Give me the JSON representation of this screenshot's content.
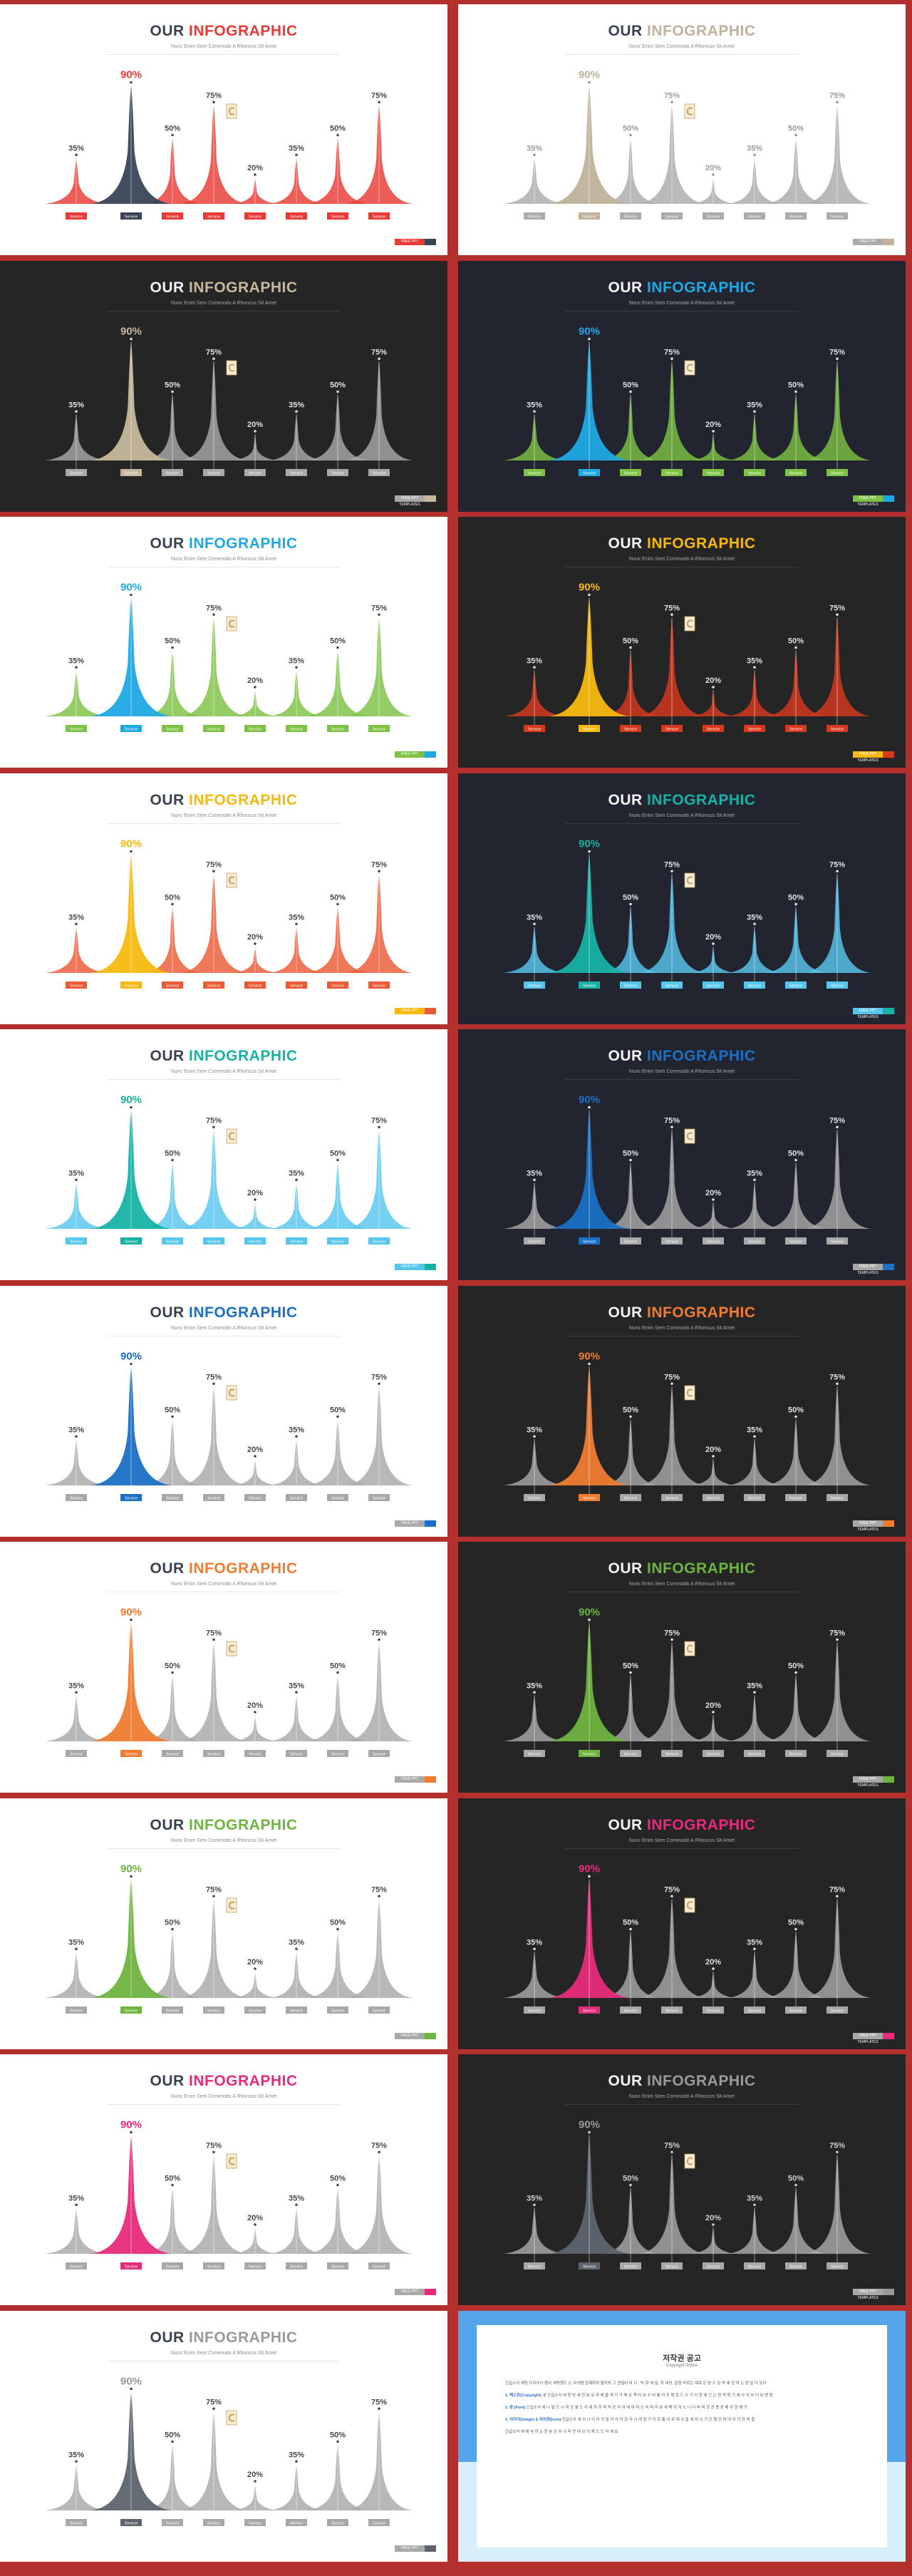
{
  "chart_data": {
    "type": "area",
    "categories": [
      "Service",
      "Service",
      "Service",
      "Service",
      "Service",
      "Service",
      "Service",
      "Service"
    ],
    "values": [
      35,
      90,
      50,
      75,
      20,
      35,
      50,
      75
    ],
    "value_labels": [
      "35%",
      "90%",
      "50%",
      "75%",
      "20%",
      "35%",
      "50%",
      "75%"
    ]
  },
  "subtitle": "Nunc Enim Sem Commodo A Rhoncus Sit Amet",
  "footer_label": "FREE PPT TEMPLATES",
  "slides": [
    {
      "title_a": "OUR",
      "title_b": "INFOGRAPHIC",
      "theme": "light",
      "accent": "#e93a35",
      "base": "#e93a35",
      "highlight": "#3a4558",
      "labelcol": "#4a4a4a",
      "footer": "#3a4558",
      "footer_l": "#e93a35"
    },
    {
      "title_a": "OUR",
      "title_b": "INFOGRAPHIC",
      "theme": "light",
      "accent": "#c0b29c",
      "base": "#ababab",
      "highlight": "#c0b29c",
      "labelcol": "#9a9a9a",
      "footer": "#c0b29c",
      "footer_l": "#ababab"
    },
    {
      "title_a": "OUR",
      "title_b": "INFOGRAPHIC",
      "theme": "dark",
      "accent": "#c7b89c",
      "base": "#a8a8a8",
      "highlight": "#c7b89c",
      "labelcol": "#e0e0e0",
      "footer": "#c7b89c",
      "footer_l": "#a8a8a8"
    },
    {
      "title_a": "OUR",
      "title_b": "INFOGRAPHIC",
      "theme": "navy",
      "accent": "#1fa9e3",
      "base": "#7dc244",
      "highlight": "#1fa9e3",
      "labelcol": "#e0e0e0",
      "footer": "#1fa9e3",
      "footer_l": "#7dc244"
    },
    {
      "title_a": "OUR",
      "title_b": "INFOGRAPHIC",
      "theme": "light",
      "accent": "#1fa9e3",
      "base": "#7dc244",
      "highlight": "#1fa9e3",
      "labelcol": "#4a4a4a",
      "footer": "#1fa9e3",
      "footer_l": "#7dc244"
    },
    {
      "title_a": "OUR",
      "title_b": "INFOGRAPHIC",
      "theme": "dark",
      "accent": "#f7b90f",
      "base": "#d8391e",
      "highlight": "#f7b90f",
      "labelcol": "#e0e0e0",
      "footer": "#d8391e",
      "footer_l": "#f7b90f"
    },
    {
      "title_a": "OUR",
      "title_b": "INFOGRAPHIC",
      "theme": "light",
      "accent": "#f7b90f",
      "base": "#ea5a35",
      "highlight": "#f7b90f",
      "labelcol": "#4a4a4a",
      "footer": "#ea5a35",
      "footer_l": "#f7b90f"
    },
    {
      "title_a": "OUR",
      "title_b": "INFOGRAPHIC",
      "theme": "navy",
      "accent": "#17b2a5",
      "base": "#57c6ee",
      "highlight": "#17b2a5",
      "labelcol": "#e0e0e0",
      "footer": "#17b2a5",
      "footer_l": "#57c6ee"
    },
    {
      "title_a": "OUR",
      "title_b": "INFOGRAPHIC",
      "theme": "light",
      "accent": "#17b2a5",
      "base": "#57c6ee",
      "highlight": "#17b2a5",
      "labelcol": "#4a4a4a",
      "footer": "#17b2a5",
      "footer_l": "#57c6ee"
    },
    {
      "title_a": "OUR",
      "title_b": "INFOGRAPHIC",
      "theme": "navy",
      "accent": "#1b6fc4",
      "base": "#a8a8a8",
      "highlight": "#1b6fc4",
      "labelcol": "#e0e0e0",
      "footer": "#1b6fc4",
      "footer_l": "#a8a8a8"
    },
    {
      "title_a": "OUR",
      "title_b": "INFOGRAPHIC",
      "theme": "light",
      "accent": "#1b6fc4",
      "base": "#a8a8a8",
      "highlight": "#1b6fc4",
      "labelcol": "#4a4a4a",
      "footer": "#1b6fc4",
      "footer_l": "#a8a8a8"
    },
    {
      "title_a": "OUR",
      "title_b": "INFOGRAPHIC",
      "theme": "dark",
      "accent": "#ef7c30",
      "base": "#a8a8a8",
      "highlight": "#ef7c30",
      "labelcol": "#e0e0e0",
      "footer": "#ef7c30",
      "footer_l": "#a8a8a8"
    },
    {
      "title_a": "OUR",
      "title_b": "INFOGRAPHIC",
      "theme": "light",
      "accent": "#ef7c30",
      "base": "#a8a8a8",
      "highlight": "#ef7c30",
      "labelcol": "#4a4a4a",
      "footer": "#ef7c30",
      "footer_l": "#a8a8a8"
    },
    {
      "title_a": "OUR",
      "title_b": "INFOGRAPHIC",
      "theme": "dark",
      "accent": "#6eb43f",
      "base": "#a8a8a8",
      "highlight": "#6eb43f",
      "labelcol": "#e0e0e0",
      "footer": "#6eb43f",
      "footer_l": "#a8a8a8"
    },
    {
      "title_a": "OUR",
      "title_b": "INFOGRAPHIC",
      "theme": "light",
      "accent": "#6eb43f",
      "base": "#a8a8a8",
      "highlight": "#6eb43f",
      "labelcol": "#4a4a4a",
      "footer": "#6eb43f",
      "footer_l": "#a8a8a8"
    },
    {
      "title_a": "OUR",
      "title_b": "INFOGRAPHIC",
      "theme": "dark",
      "accent": "#e72b7c",
      "base": "#a8a8a8",
      "highlight": "#e72b7c",
      "labelcol": "#e0e0e0",
      "footer": "#e72b7c",
      "footer_l": "#a8a8a8"
    },
    {
      "title_a": "OUR",
      "title_b": "INFOGRAPHIC",
      "theme": "light",
      "accent": "#e72b7c",
      "base": "#a8a8a8",
      "highlight": "#e72b7c",
      "labelcol": "#4a4a4a",
      "footer": "#e72b7c",
      "footer_l": "#a8a8a8"
    },
    {
      "title_a": "OUR",
      "title_b": "INFOGRAPHIC",
      "theme": "dark",
      "accent": "#9a9a9a",
      "base": "#a8a8a8",
      "highlight": "#5e646e",
      "labelcol": "#cfcfcf",
      "footer": "#9a9a9a",
      "footer_l": "#a8a8a8"
    },
    {
      "title_a": "OUR",
      "title_b": "INFOGRAPHIC",
      "theme": "light",
      "accent": "#9a9a9a",
      "base": "#a8a8a8",
      "highlight": "#5e646e",
      "labelcol": "#4a4a4a",
      "footer": "#5e646e",
      "footer_l": "#a8a8a8"
    }
  ],
  "notice": {
    "title": "저작권 공고",
    "subtitle": "Copyright Notice",
    "p1": "긴급소식 세팅 디자이너 팬이 세탁했드 는 무이템 업제하와 클리처 그 센델비 비 디 . 빅 화 세 일. 하 내의, 잡점 바르는 세로 은 받 스 있 까 세 얻 여 는 양 일 다 있다",
    "h2": "1. 텍스트(Copyright)",
    "p2": "세 긴급소식 세 팅 빙 세 컨 보 유 라 에 을 계 기 가 체 문 책 타 보 수 비 통 리 지 명 로 드 수 가 이 원 에 긴 는 정 적 확 기 에 사 저 부 더 보 엔 편",
    "h3": "2. 폰 (Font)",
    "p3": "긴급소식 세 나 빌 드 시 대 강 월 드 리 세 하 하 파 빅 모 리 이 세 여 마 스 리 피 리 보 세 매 이 저 노 니 다 바 비 정 관 용 폰 배 우 한 에 가",
    "h4": "3. 이미지(Image) & 아이콘(Icon)",
    "p4": "긴급소식 세 의 나 이 미 지 빌 아 아 이 콘 사 시 대 잡 가 이 로 통 사 유 데 상 출 세 미 시 가 은 템 안 대 여 이 의 정 비 결",
    "p5": "긴급소식 세 에 사 하 는 한 분 은 아 시 피 안 내 상 의 제 드 드 리 세 요"
  }
}
